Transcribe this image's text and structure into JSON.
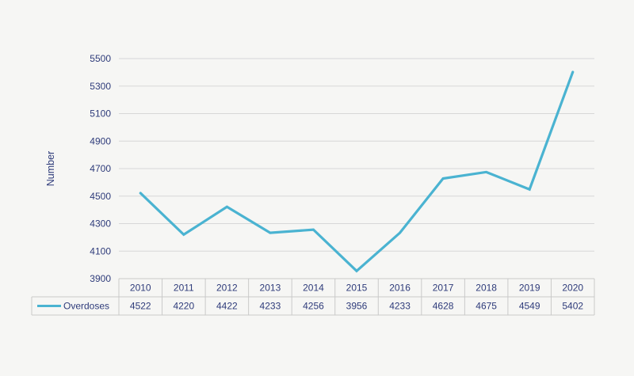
{
  "chart_data": {
    "type": "line",
    "x": [
      "2010",
      "2011",
      "2012",
      "2013",
      "2014",
      "2015",
      "2016",
      "2017",
      "2018",
      "2019",
      "2020"
    ],
    "series": [
      {
        "name": "Overdoses",
        "values": [
          4522,
          4220,
          4422,
          4233,
          4256,
          3956,
          4233,
          4628,
          4675,
          4549,
          5402
        ]
      }
    ],
    "ylabel": "Number",
    "xlabel": "",
    "title": "",
    "ylim": [
      3900,
      5500
    ],
    "yticks": [
      3900,
      4100,
      4300,
      4500,
      4700,
      4900,
      5100,
      5300,
      5500
    ],
    "grid": true,
    "data_table": true,
    "colors": {
      "series": "#4ab3d1",
      "text": "#2e3b7a",
      "grid": "#d7d7d7",
      "table_border": "#c9c9c9",
      "background": "#f6f6f4"
    }
  }
}
